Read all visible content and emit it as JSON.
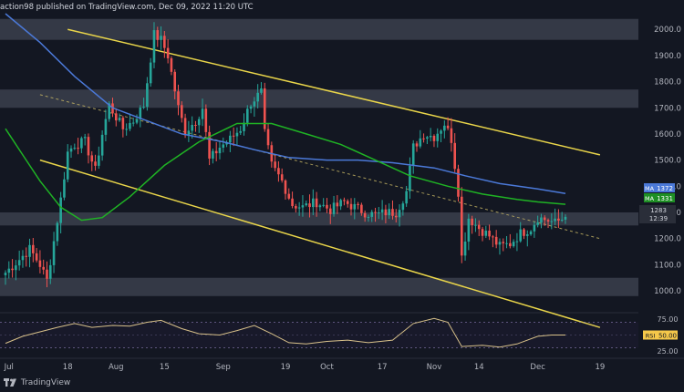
{
  "header": {
    "publisher_text": "action98 published on TradingView.com, Dec 09, 2022 11:20 UTC"
  },
  "watermark": {
    "text": "TradingView"
  },
  "colors": {
    "background": "#131722",
    "up_candle": "#26a69a",
    "down_candle": "#ef5350",
    "ma_fast": "#4b79d8",
    "ma_slow": "#1fb324",
    "channel": "#e9d54a",
    "zone": "#3b3f4c",
    "rsi_line": "#d8c18a",
    "axis_text": "#b2b5be"
  },
  "chart_data": {
    "type": "candlestick",
    "y_axis": {
      "range": [
        920,
        2060
      ],
      "tick_labels": [
        "2000.0",
        "1900.0",
        "1800.0",
        "1700.0",
        "1600.0",
        "1500.0",
        "1400.0",
        "1300.0",
        "1200.0",
        "1100.0",
        "1000.0"
      ],
      "tick_values": [
        2000,
        1900,
        1800,
        1700,
        1600,
        1500,
        1400,
        1300,
        1200,
        1100,
        1000
      ]
    },
    "x_axis": {
      "tick_labels": [
        "Jul",
        "18",
        "Aug",
        "15",
        "Sep",
        "19",
        "Oct",
        "17",
        "Nov",
        "14",
        "Dec",
        "19"
      ],
      "tick_dates": [
        "2022-07-01",
        "2022-07-18",
        "2022-08-01",
        "2022-08-15",
        "2022-09-01",
        "2022-09-19",
        "2022-10-01",
        "2022-10-17",
        "2022-11-01",
        "2022-11-14",
        "2022-12-01",
        "2022-12-19"
      ]
    },
    "key_points": [
      [
        "2022-06-30",
        1070
      ],
      [
        "2022-07-04",
        1120
      ],
      [
        "2022-07-07",
        1160
      ],
      [
        "2022-07-10",
        1100
      ],
      [
        "2022-07-12",
        1040
      ],
      [
        "2022-07-14",
        1190
      ],
      [
        "2022-07-16",
        1350
      ],
      [
        "2022-07-18",
        1530
      ],
      [
        "2022-07-20",
        1560
      ],
      [
        "2022-07-23",
        1570
      ],
      [
        "2022-07-26",
        1460
      ],
      [
        "2022-07-28",
        1600
      ],
      [
        "2022-07-30",
        1710
      ],
      [
        "2022-08-03",
        1620
      ],
      [
        "2022-08-06",
        1650
      ],
      [
        "2022-08-09",
        1710
      ],
      [
        "2022-08-12",
        1980
      ],
      [
        "2022-08-14",
        1960
      ],
      [
        "2022-08-16",
        1900
      ],
      [
        "2022-08-19",
        1700
      ],
      [
        "2022-08-21",
        1610
      ],
      [
        "2022-08-24",
        1650
      ],
      [
        "2022-08-26",
        1700
      ],
      [
        "2022-08-28",
        1500
      ],
      [
        "2022-08-31",
        1550
      ],
      [
        "2022-09-03",
        1580
      ],
      [
        "2022-09-06",
        1620
      ],
      [
        "2022-09-09",
        1720
      ],
      [
        "2022-09-12",
        1760
      ],
      [
        "2022-09-13",
        1600
      ],
      [
        "2022-09-15",
        1480
      ],
      [
        "2022-09-18",
        1420
      ],
      [
        "2022-09-21",
        1330
      ],
      [
        "2022-09-24",
        1320
      ],
      [
        "2022-09-28",
        1340
      ],
      [
        "2022-10-02",
        1310
      ],
      [
        "2022-10-06",
        1340
      ],
      [
        "2022-10-09",
        1320
      ],
      [
        "2022-10-12",
        1300
      ],
      [
        "2022-10-15",
        1290
      ],
      [
        "2022-10-18",
        1300
      ],
      [
        "2022-10-21",
        1300
      ],
      [
        "2022-10-24",
        1380
      ],
      [
        "2022-10-26",
        1550
      ],
      [
        "2022-10-29",
        1600
      ],
      [
        "2022-11-01",
        1590
      ],
      [
        "2022-11-04",
        1640
      ],
      [
        "2022-11-06",
        1580
      ],
      [
        "2022-11-08",
        1380
      ],
      [
        "2022-11-09",
        1130
      ],
      [
        "2022-11-11",
        1280
      ],
      [
        "2022-11-14",
        1240
      ],
      [
        "2022-11-17",
        1210
      ],
      [
        "2022-11-20",
        1170
      ],
      [
        "2022-11-23",
        1180
      ],
      [
        "2022-11-26",
        1220
      ],
      [
        "2022-11-29",
        1240
      ],
      [
        "2022-12-01",
        1280
      ],
      [
        "2022-12-04",
        1270
      ],
      [
        "2022-12-06",
        1260
      ],
      [
        "2022-12-09",
        1283
      ]
    ],
    "moving_averages": [
      {
        "name": "MA",
        "last_value_label": "1372",
        "color": "#4b79d8",
        "points": [
          [
            "2022-06-30",
            2060
          ],
          [
            "2022-07-10",
            1950
          ],
          [
            "2022-07-20",
            1820
          ],
          [
            "2022-07-31",
            1700
          ],
          [
            "2022-08-10",
            1650
          ],
          [
            "2022-08-20",
            1600
          ],
          [
            "2022-09-01",
            1570
          ],
          [
            "2022-09-10",
            1540
          ],
          [
            "2022-09-20",
            1510
          ],
          [
            "2022-10-01",
            1500
          ],
          [
            "2022-10-10",
            1500
          ],
          [
            "2022-10-20",
            1490
          ],
          [
            "2022-11-01",
            1470
          ],
          [
            "2022-11-10",
            1440
          ],
          [
            "2022-11-20",
            1410
          ],
          [
            "2022-12-01",
            1390
          ],
          [
            "2022-12-09",
            1372
          ]
        ]
      },
      {
        "name": "MA",
        "last_value_label": "1331",
        "color": "#1fb324",
        "points": [
          [
            "2022-06-30",
            1620
          ],
          [
            "2022-07-05",
            1520
          ],
          [
            "2022-07-10",
            1420
          ],
          [
            "2022-07-16",
            1320
          ],
          [
            "2022-07-22",
            1270
          ],
          [
            "2022-07-28",
            1280
          ],
          [
            "2022-08-05",
            1360
          ],
          [
            "2022-08-15",
            1480
          ],
          [
            "2022-08-25",
            1570
          ],
          [
            "2022-09-05",
            1640
          ],
          [
            "2022-09-15",
            1640
          ],
          [
            "2022-09-25",
            1600
          ],
          [
            "2022-10-05",
            1560
          ],
          [
            "2022-10-15",
            1500
          ],
          [
            "2022-10-25",
            1440
          ],
          [
            "2022-11-05",
            1400
          ],
          [
            "2022-11-15",
            1370
          ],
          [
            "2022-11-25",
            1350
          ],
          [
            "2022-12-01",
            1340
          ],
          [
            "2022-12-09",
            1331
          ]
        ]
      }
    ],
    "price_labels": [
      "1283",
      "12:39"
    ],
    "horizontal_zones": [
      [
        1960,
        2040
      ],
      [
        1700,
        1770
      ],
      [
        1250,
        1300
      ],
      [
        980,
        1050
      ]
    ],
    "channel_lines": [
      [
        [
          "2022-07-18",
          2000
        ],
        [
          "2022-12-19",
          1520
        ]
      ],
      [
        [
          "2022-07-10",
          1500
        ],
        [
          "2022-12-19",
          860
        ]
      ]
    ],
    "midline": [
      [
        "2022-07-10",
        1750
      ],
      [
        "2022-12-19",
        1200
      ]
    ],
    "rsi": {
      "label": "RSI",
      "last_value_label": "50.00",
      "range": [
        15,
        85
      ],
      "tick_labels": [
        "75.00",
        "50.00",
        "25.00"
      ],
      "tick_values": [
        75,
        50,
        25
      ],
      "points": [
        [
          "2022-06-30",
          37
        ],
        [
          "2022-07-05",
          48
        ],
        [
          "2022-07-10",
          55
        ],
        [
          "2022-07-15",
          62
        ],
        [
          "2022-07-20",
          68
        ],
        [
          "2022-07-25",
          62
        ],
        [
          "2022-07-31",
          65
        ],
        [
          "2022-08-05",
          64
        ],
        [
          "2022-08-10",
          70
        ],
        [
          "2022-08-14",
          73
        ],
        [
          "2022-08-20",
          60
        ],
        [
          "2022-08-25",
          52
        ],
        [
          "2022-08-31",
          50
        ],
        [
          "2022-09-05",
          57
        ],
        [
          "2022-09-10",
          65
        ],
        [
          "2022-09-15",
          52
        ],
        [
          "2022-09-20",
          38
        ],
        [
          "2022-09-25",
          36
        ],
        [
          "2022-10-01",
          40
        ],
        [
          "2022-10-07",
          42
        ],
        [
          "2022-10-13",
          38
        ],
        [
          "2022-10-20",
          42
        ],
        [
          "2022-10-26",
          68
        ],
        [
          "2022-11-01",
          76
        ],
        [
          "2022-11-05",
          70
        ],
        [
          "2022-11-09",
          32
        ],
        [
          "2022-11-15",
          34
        ],
        [
          "2022-11-20",
          31
        ],
        [
          "2022-11-25",
          36
        ],
        [
          "2022-12-01",
          48
        ],
        [
          "2022-12-05",
          50
        ],
        [
          "2022-12-09",
          50
        ]
      ]
    }
  }
}
